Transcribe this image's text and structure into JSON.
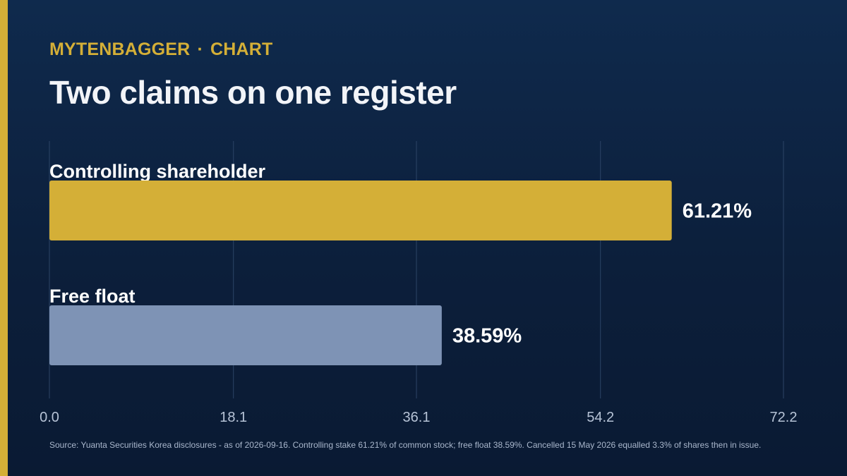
{
  "header": {
    "brand": "MYTENBAGGER",
    "separator": "·",
    "section": "CHART",
    "title": "Two claims on one register"
  },
  "colors": {
    "accent": "#d4af37",
    "controlling_bar": "#d4af37",
    "free_float_bar": "#7e93b5",
    "background": "#0c1f3b"
  },
  "chart_data": {
    "type": "bar",
    "orientation": "horizontal",
    "categories": [
      "Controlling shareholder",
      "Free float"
    ],
    "values": [
      61.21,
      38.59
    ],
    "value_labels": [
      "61.21%",
      "38.59%"
    ],
    "xlim": [
      0,
      72.2
    ],
    "xticks": [
      "0.0",
      "18.1",
      "36.1",
      "54.2",
      "72.2"
    ],
    "grid": true,
    "legend": "none"
  },
  "footer": {
    "source": "Source: Yuanta Securities Korea disclosures - as of 2026-09-16. Controlling stake 61.21% of common stock; free float 38.59%. Cancelled 15 May 2026 equalled 3.3% of shares then in issue."
  }
}
